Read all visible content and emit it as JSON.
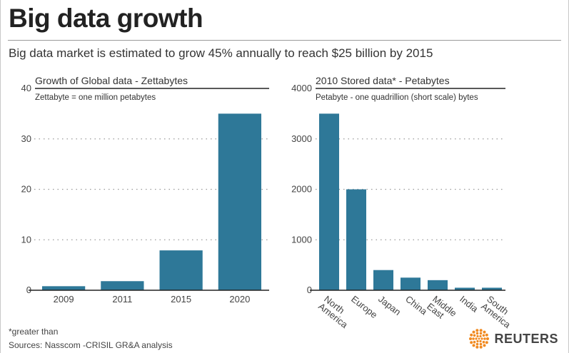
{
  "header": {
    "title": "Big data growth",
    "subtitle": "Big data market is estimated to grow 45% annually to reach $25 billion by 2015"
  },
  "footer": {
    "footnote": "*greater than",
    "sources": "Sources: Nasscom -CRISIL GR&A analysis",
    "brand": "REUTERS",
    "brand_color": "#f18a21"
  },
  "chart_data": [
    {
      "type": "bar",
      "title": "Growth of Global data - Zettabytes",
      "note": "Zettabyte = one million petabytes",
      "categories": [
        "2009",
        "2011",
        "2015",
        "2020"
      ],
      "values": [
        0.8,
        1.8,
        7.9,
        35
      ],
      "yticks": [
        0,
        10,
        20,
        30,
        40
      ],
      "ylim": [
        0,
        40
      ],
      "grid": true,
      "bar_color": "#2e7898"
    },
    {
      "type": "bar",
      "title": "2010 Stored data* - Petabytes",
      "note": "Petabyte - one quadrillion (short scale) bytes",
      "categories": [
        [
          "North",
          "America"
        ],
        [
          "Europe"
        ],
        [
          "Japan"
        ],
        [
          "China"
        ],
        [
          "Middle",
          "East"
        ],
        [
          "India"
        ],
        [
          "South",
          "America"
        ]
      ],
      "values": [
        3500,
        2000,
        400,
        250,
        200,
        50,
        50
      ],
      "yticks": [
        0,
        1000,
        2000,
        3000,
        4000
      ],
      "ylim": [
        0,
        4000
      ],
      "grid": true,
      "bar_color": "#2e7898"
    }
  ]
}
